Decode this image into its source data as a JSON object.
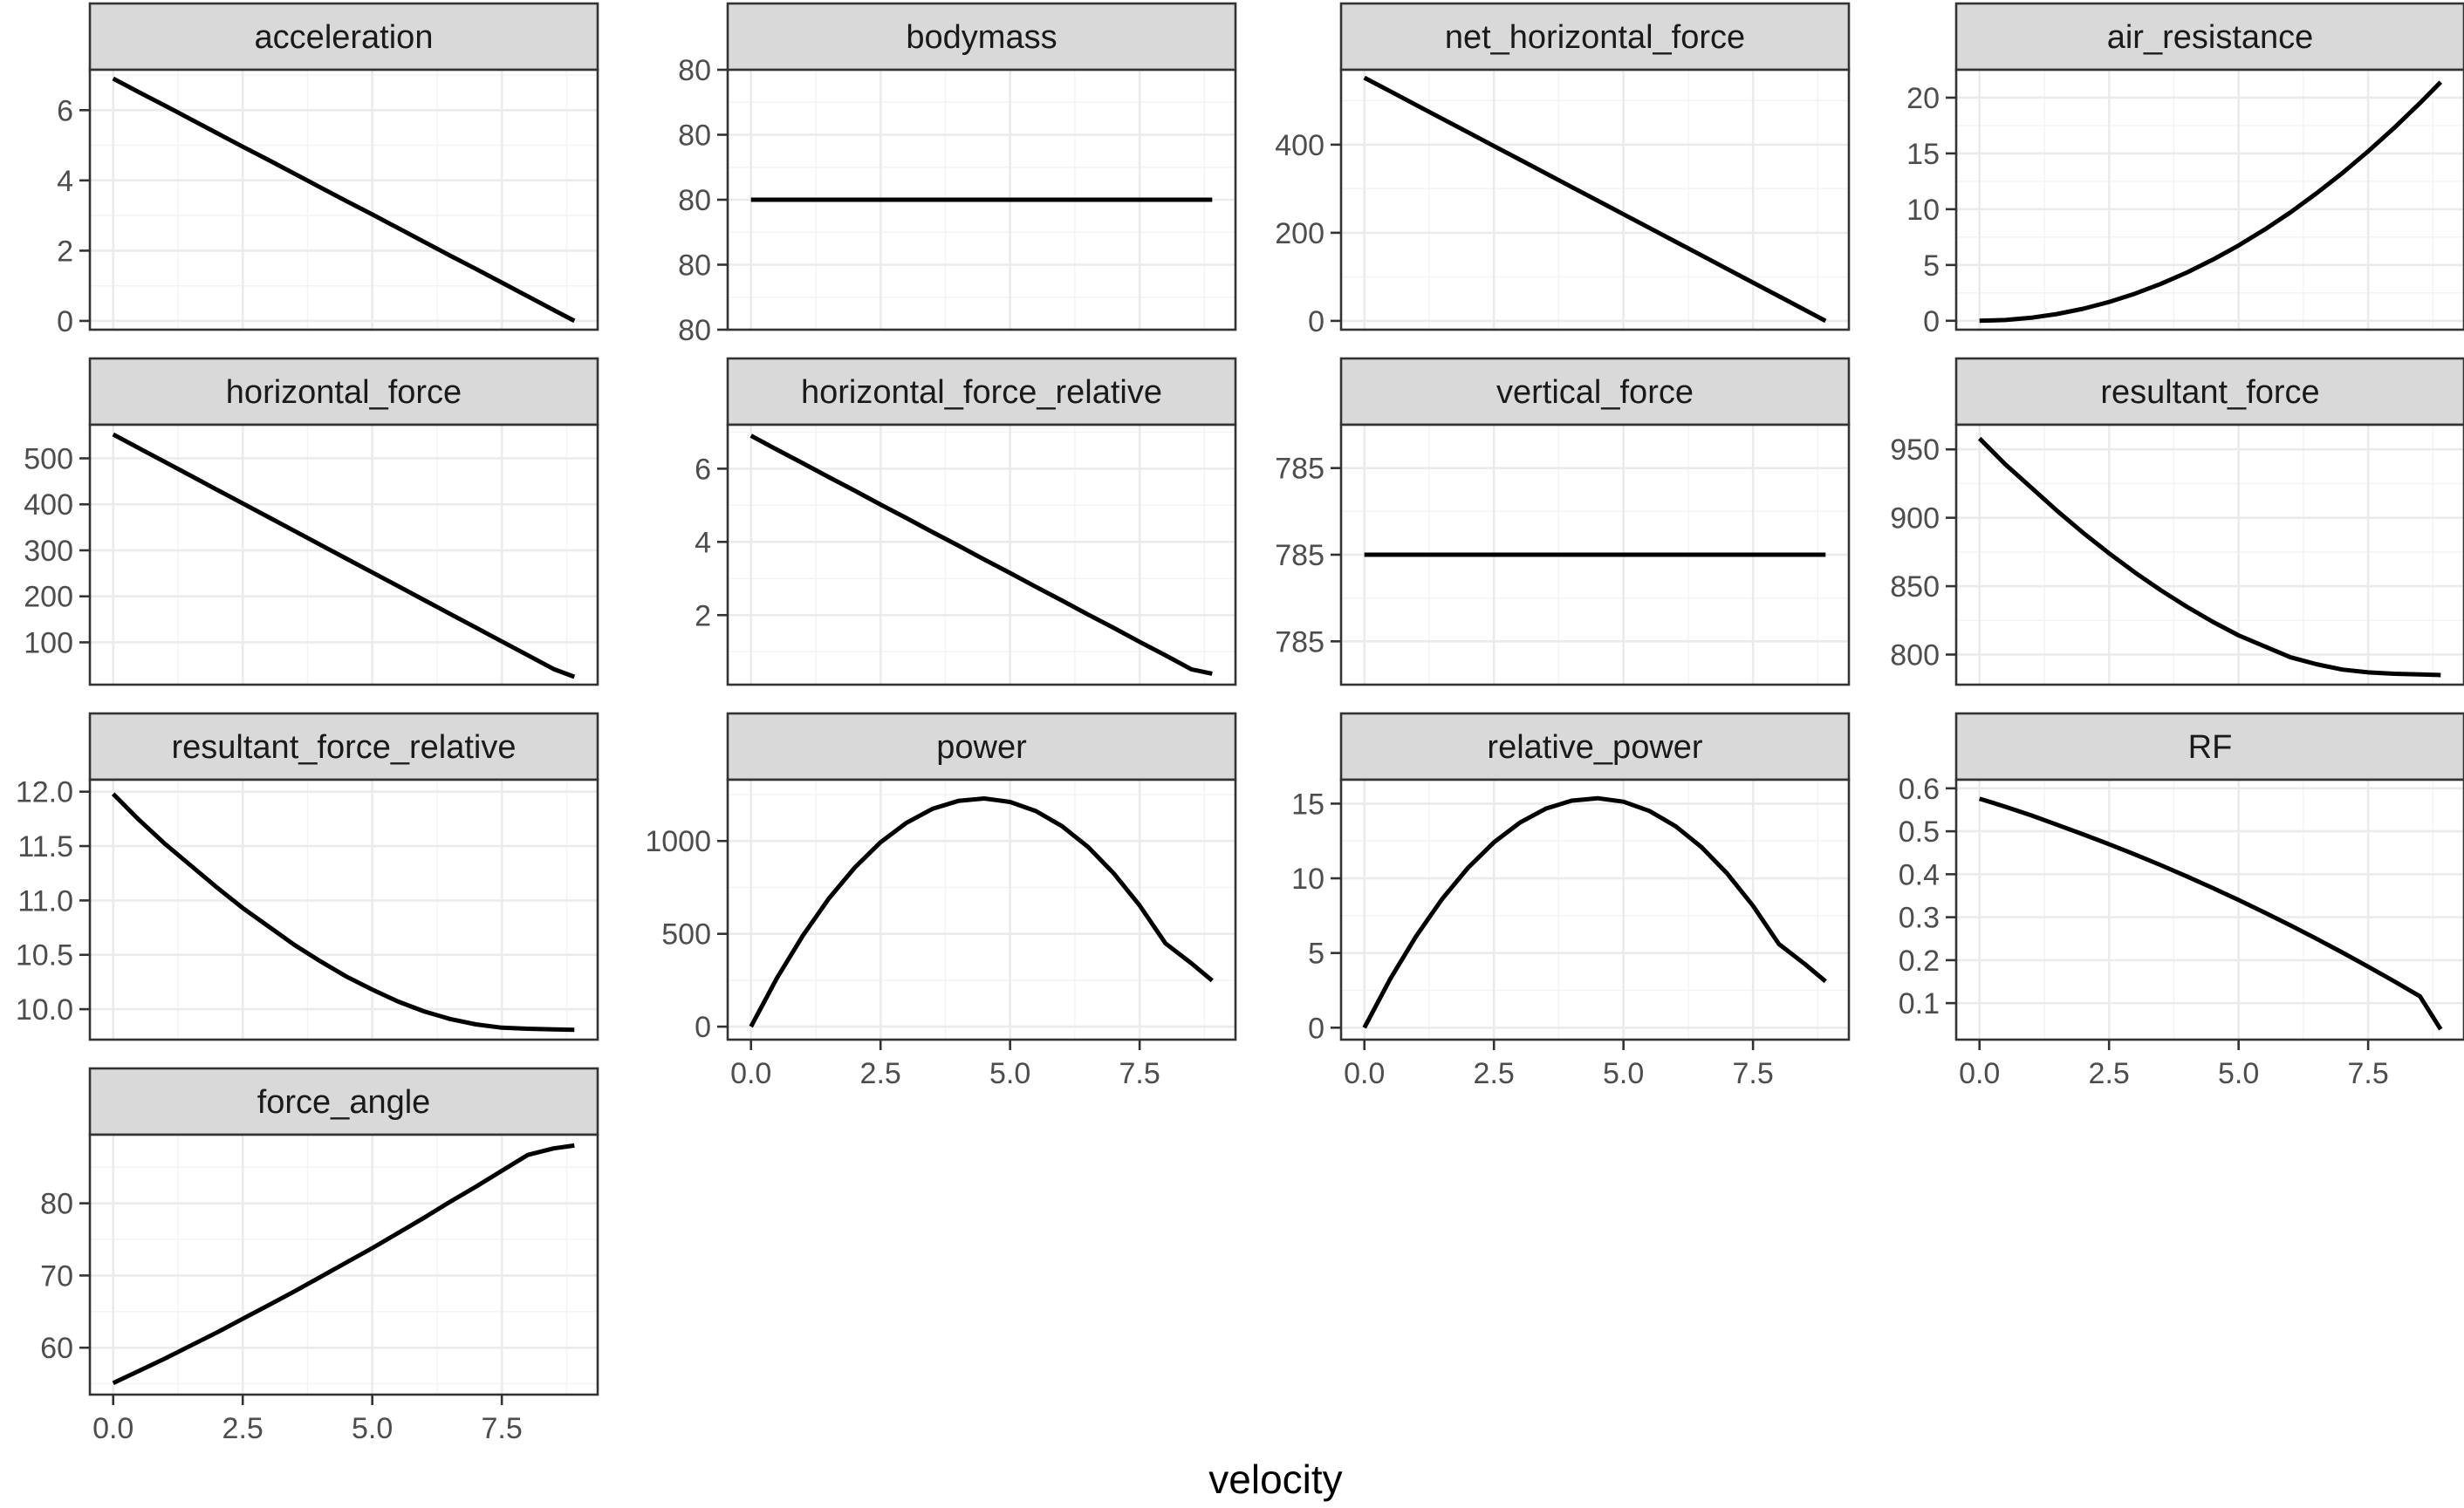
{
  "chart_data": {
    "type": "line",
    "facet_layout": {
      "ncol": 4,
      "nrow": 4,
      "x_axis_shared": true,
      "y_axis_free": true
    },
    "xlabel": "velocity",
    "xlim": [
      -0.45,
      9.35
    ],
    "x_ticks": [
      0.0,
      2.5,
      5.0,
      7.5
    ],
    "x_ticklabels": [
      "0.0",
      "2.5",
      "5.0",
      "7.5"
    ],
    "x_minor": [
      1.25,
      3.75,
      6.25,
      8.75
    ],
    "grid": true,
    "line_color": "#000000",
    "x": [
      0,
      0.5,
      1,
      1.5,
      2,
      2.5,
      3,
      3.5,
      4,
      4.5,
      5,
      5.5,
      6,
      6.5,
      7,
      7.5,
      8,
      8.5,
      8.9
    ],
    "panels": [
      {
        "title": "acceleration",
        "ylim": [
          -0.25,
          7.15
        ],
        "y_ticks": [
          0,
          2,
          4,
          6
        ],
        "y_ticklabels": [
          "0",
          "2",
          "4",
          "6"
        ],
        "y_minor": [
          1,
          3,
          5,
          7
        ],
        "y": [
          6.9,
          6.51,
          6.13,
          5.74,
          5.35,
          4.96,
          4.58,
          4.19,
          3.8,
          3.41,
          3.03,
          2.64,
          2.25,
          1.86,
          1.48,
          1.09,
          0.7,
          0.31,
          0.0
        ]
      },
      {
        "title": "bodymass",
        "ylim": [
          -1,
          1
        ],
        "y_ticks": [
          -1,
          -0.5,
          0,
          0.5,
          1
        ],
        "y_ticklabels": [
          "80",
          "80",
          "80",
          "80",
          "80"
        ],
        "y_minor": [
          -0.75,
          -0.25,
          0.25,
          0.75
        ],
        "y": [
          0,
          0,
          0,
          0,
          0,
          0,
          0,
          0,
          0,
          0,
          0,
          0,
          0,
          0,
          0,
          0,
          0,
          0,
          0
        ]
      },
      {
        "title": "net_horizontal_force",
        "ylim": [
          -20,
          570
        ],
        "y_ticks": [
          0,
          200,
          400
        ],
        "y_ticklabels": [
          "0",
          "200",
          "400"
        ],
        "y_minor": [
          100,
          300,
          500
        ],
        "y": [
          552,
          521,
          490,
          459,
          428,
          397,
          366,
          335,
          304,
          273,
          242,
          211,
          180,
          149,
          118,
          87,
          56,
          25,
          0
        ]
      },
      {
        "title": "air_resistance",
        "ylim": [
          -0.8,
          22.5
        ],
        "y_ticks": [
          0,
          5,
          10,
          15,
          20
        ],
        "y_ticklabels": [
          "0",
          "5",
          "10",
          "15",
          "20"
        ],
        "y_minor": [
          2.5,
          7.5,
          12.5,
          17.5
        ],
        "y": [
          0.0,
          0.07,
          0.27,
          0.61,
          1.08,
          1.69,
          2.43,
          3.31,
          4.32,
          5.47,
          6.75,
          8.17,
          9.72,
          11.41,
          13.23,
          15.19,
          17.28,
          19.51,
          21.4
        ]
      },
      {
        "title": "horizontal_force",
        "ylim": [
          8,
          573
        ],
        "y_ticks": [
          100,
          200,
          300,
          400,
          500
        ],
        "y_ticklabels": [
          "100",
          "200",
          "300",
          "400",
          "500"
        ],
        "y_minor": [],
        "y": [
          552,
          522,
          492,
          462,
          432,
          402,
          372,
          342,
          312,
          282,
          252,
          222,
          192,
          162,
          132,
          102,
          72,
          42,
          25
        ]
      },
      {
        "title": "horizontal_force_relative",
        "ylim": [
          0.1,
          7.2
        ],
        "y_ticks": [
          2,
          4,
          6
        ],
        "y_ticklabels": [
          "2",
          "4",
          "6"
        ],
        "y_minor": [
          1,
          3,
          5,
          7
        ],
        "y": [
          6.9,
          6.52,
          6.15,
          5.77,
          5.4,
          5.02,
          4.65,
          4.27,
          3.9,
          3.52,
          3.15,
          2.77,
          2.4,
          2.02,
          1.65,
          1.27,
          0.9,
          0.52,
          0.4
        ]
      },
      {
        "title": "vertical_force",
        "ylim": [
          -1.5,
          1.5
        ],
        "y_ticks": [
          -1,
          0,
          1,
          2
        ],
        "y_ticklabels": [
          "785",
          "785",
          "785",
          "785"
        ],
        "y_minor": [
          -0.5,
          0.5,
          1.5
        ],
        "y": [
          0,
          0,
          0,
          0,
          0,
          0,
          0,
          0,
          0,
          0,
          0,
          0,
          0,
          0,
          0,
          0,
          0,
          0,
          0
        ]
      },
      {
        "title": "resultant_force",
        "ylim": [
          778,
          968
        ],
        "y_ticks": [
          800,
          850,
          900,
          950
        ],
        "y_ticklabels": [
          "800",
          "850",
          "900",
          "950"
        ],
        "y_minor": [
          825,
          875,
          925
        ],
        "y": [
          958,
          939,
          922,
          905,
          889,
          874,
          860,
          847,
          835,
          824,
          814,
          806,
          798,
          793,
          789,
          787,
          786,
          785.5,
          785
        ]
      },
      {
        "title": "resultant_force_relative",
        "ylim": [
          9.72,
          12.11
        ],
        "y_ticks": [
          10.0,
          10.5,
          11.0,
          11.5,
          12.0
        ],
        "y_ticklabels": [
          "10.0",
          "10.5",
          "11.0",
          "11.5",
          "12.0"
        ],
        "y_minor": [],
        "y": [
          11.98,
          11.74,
          11.52,
          11.32,
          11.12,
          10.93,
          10.76,
          10.59,
          10.44,
          10.3,
          10.18,
          10.07,
          9.98,
          9.91,
          9.86,
          9.83,
          9.82,
          9.815,
          9.81
        ]
      },
      {
        "title": "power",
        "ylim": [
          -70,
          1330
        ],
        "y_ticks": [
          0,
          500,
          1000
        ],
        "y_ticklabels": [
          "0",
          "500",
          "1000"
        ],
        "y_minor": [
          250,
          750,
          1250
        ],
        "y": [
          0,
          261,
          490,
          689,
          856,
          993,
          1098,
          1173,
          1216,
          1229,
          1210,
          1161,
          1080,
          969,
          826,
          653,
          448,
          341,
          248
        ]
      },
      {
        "title": "relative_power",
        "ylim": [
          -0.8,
          16.6
        ],
        "y_ticks": [
          0,
          5,
          10,
          15
        ],
        "y_ticklabels": [
          "0",
          "5",
          "10",
          "15"
        ],
        "y_minor": [
          2.5,
          7.5,
          12.5
        ],
        "y": [
          0,
          3.27,
          6.13,
          8.61,
          10.7,
          12.41,
          13.73,
          14.66,
          15.2,
          15.36,
          15.13,
          14.51,
          13.5,
          12.11,
          10.33,
          8.16,
          5.6,
          4.26,
          3.1
        ]
      },
      {
        "title": "RF",
        "ylim": [
          0.015,
          0.62
        ],
        "y_ticks": [
          0.1,
          0.2,
          0.3,
          0.4,
          0.5,
          0.6
        ],
        "y_ticklabels": [
          "0.1",
          "0.2",
          "0.3",
          "0.4",
          "0.5",
          "0.6"
        ],
        "y_minor": [],
        "y": [
          0.576,
          0.557,
          0.537,
          0.515,
          0.493,
          0.47,
          0.446,
          0.421,
          0.395,
          0.368,
          0.34,
          0.311,
          0.281,
          0.25,
          0.218,
          0.185,
          0.151,
          0.116,
          0.039
        ]
      },
      {
        "title": "force_angle",
        "ylim": [
          53.5,
          89.5
        ],
        "y_ticks": [
          60,
          70,
          80
        ],
        "y_ticklabels": [
          "60",
          "70",
          "80"
        ],
        "y_minor": [
          55,
          65,
          75,
          85
        ],
        "y": [
          55.1,
          56.8,
          58.5,
          60.3,
          62.1,
          64.0,
          65.9,
          67.8,
          69.8,
          71.8,
          73.8,
          75.9,
          78.0,
          80.2,
          82.3,
          84.5,
          86.7,
          87.6,
          88.0
        ]
      }
    ]
  }
}
